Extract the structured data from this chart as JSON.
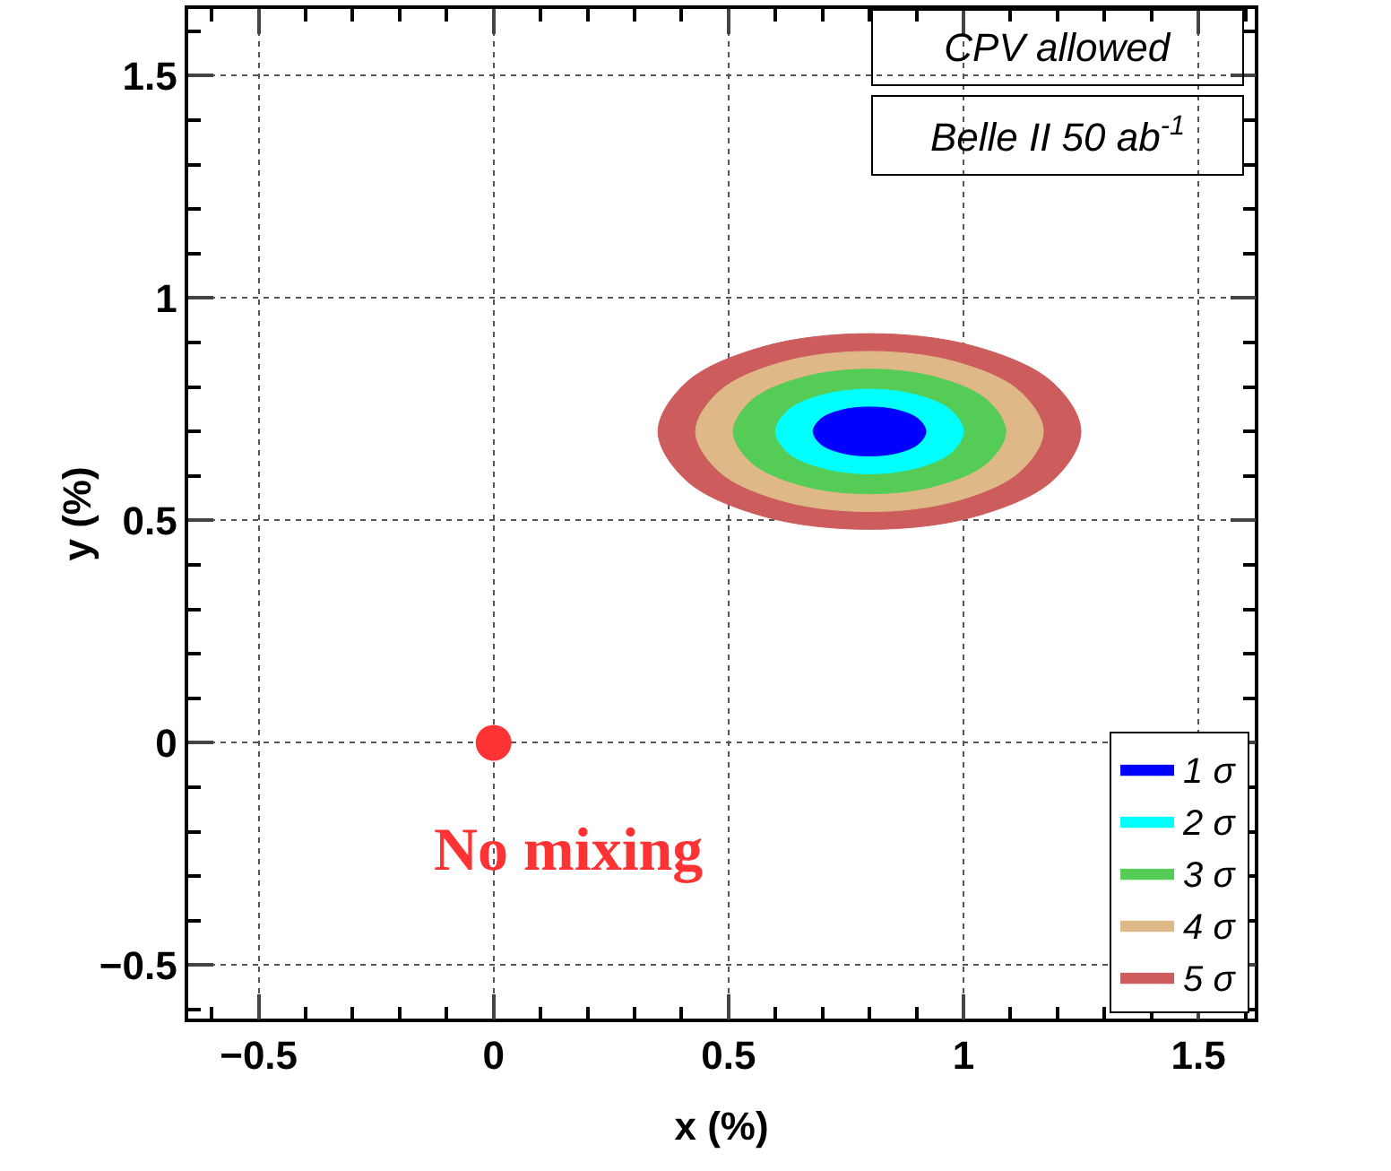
{
  "chart_data": {
    "type": "area",
    "xlabel": "x (%)",
    "ylabel": "y (%)",
    "xlim": [
      -0.65,
      1.62
    ],
    "ylim": [
      -0.62,
      1.65
    ],
    "xticks": [
      -0.5,
      0,
      0.5,
      1,
      1.5
    ],
    "yticks": [
      -0.5,
      0,
      0.5,
      1,
      1.5
    ],
    "grid": true,
    "legend": "bottom right",
    "annotations": [
      "CPV allowed",
      "Belle II 50 ab$^{-1}$"
    ],
    "series": [
      {
        "name": "5 σ",
        "color": "#cd5c5c",
        "x": [
          1.25,
          1.19,
          1.025,
          0.8,
          0.575,
          0.41,
          0.35,
          0.41,
          0.575,
          0.8,
          1.025,
          1.19,
          1.25
        ],
        "values": [
          0.7,
          0.81,
          0.891,
          0.92,
          0.891,
          0.81,
          0.7,
          0.59,
          0.509,
          0.48,
          0.509,
          0.59,
          0.7
        ]
      },
      {
        "name": "4 σ",
        "color": "#deb887",
        "x": [
          1.17,
          1.12,
          0.985,
          0.8,
          0.615,
          0.48,
          0.43,
          0.48,
          0.615,
          0.8,
          0.985,
          1.12,
          1.17
        ],
        "values": [
          0.7,
          0.79,
          0.856,
          0.88,
          0.856,
          0.79,
          0.7,
          0.61,
          0.544,
          0.52,
          0.544,
          0.61,
          0.7
        ]
      },
      {
        "name": "3 σ",
        "color": "#55cc55",
        "x": [
          1.09,
          1.051,
          0.945,
          0.8,
          0.655,
          0.549,
          0.51,
          0.549,
          0.655,
          0.8,
          0.945,
          1.051,
          1.09
        ],
        "values": [
          0.7,
          0.77,
          0.821,
          0.84,
          0.821,
          0.77,
          0.7,
          0.63,
          0.579,
          0.56,
          0.579,
          0.63,
          0.7
        ]
      },
      {
        "name": "2 σ",
        "color": "#00ffff",
        "x": [
          1.0,
          0.973,
          0.9,
          0.8,
          0.7,
          0.627,
          0.6,
          0.627,
          0.7,
          0.8,
          0.9,
          0.973,
          1.0
        ],
        "values": [
          0.7,
          0.748,
          0.782,
          0.795,
          0.782,
          0.748,
          0.7,
          0.652,
          0.618,
          0.605,
          0.618,
          0.652,
          0.7
        ]
      },
      {
        "name": "1 σ",
        "color": "#0000ff",
        "x": [
          0.92,
          0.904,
          0.86,
          0.8,
          0.74,
          0.696,
          0.68,
          0.696,
          0.74,
          0.8,
          0.86,
          0.904,
          0.92
        ],
        "values": [
          0.7,
          0.728,
          0.748,
          0.755,
          0.748,
          0.728,
          0.7,
          0.672,
          0.652,
          0.645,
          0.652,
          0.672,
          0.7
        ]
      },
      {
        "name": "No mixing",
        "type": "scatter",
        "marker": "circle",
        "color": "#ff3333",
        "x": [
          0
        ],
        "values": [
          0
        ]
      }
    ]
  }
}
